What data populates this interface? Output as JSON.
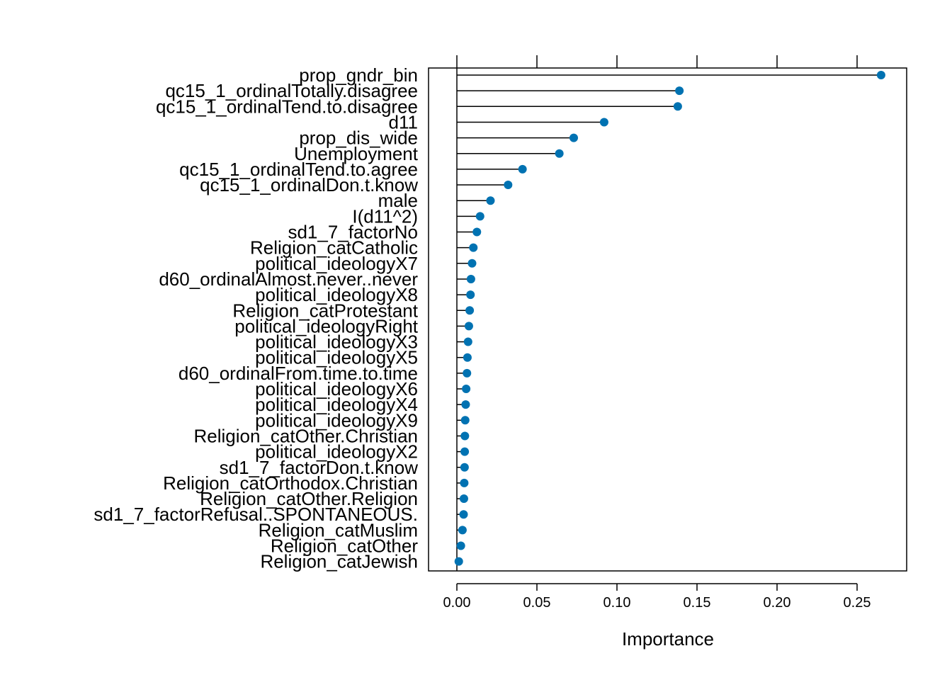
{
  "chart_data": {
    "type": "lollipop",
    "title": "",
    "xlabel": "Importance",
    "ylabel": "",
    "xlim": [
      -0.017,
      0.28
    ],
    "xticks": [
      0.0,
      0.05,
      0.1,
      0.15,
      0.2,
      0.25
    ],
    "xtick_labels": [
      "0.00",
      "0.05",
      "0.10",
      "0.15",
      "0.20",
      "0.25"
    ],
    "grid": false,
    "legend": "none",
    "colors": {
      "point": "#0072B2",
      "line": "#000000",
      "frame": "#000000"
    },
    "categories": [
      "prop_gndr_bin",
      "qc15_1_ordinalTotally.disagree",
      "qc15_1_ordinalTend.to.disagree",
      "d11",
      "prop_dis_wide",
      "Unemployment",
      "qc15_1_ordinalTend.to.agree",
      "qc15_1_ordinalDon.t.know",
      "male",
      "I(d11^2)",
      "sd1_7_factorNo",
      "Religion_catCatholic",
      "political_ideologyX7",
      "d60_ordinalAlmost.never..never",
      "political_ideologyX8",
      "Religion_catProtestant",
      "political_ideologyRight",
      "political_ideologyX3",
      "political_ideologyX5",
      "d60_ordinalFrom.time.to.time",
      "political_ideologyX6",
      "political_ideologyX4",
      "political_ideologyX9",
      "Religion_catOther.Christian",
      "political_ideologyX2",
      "sd1_7_factorDon.t.know",
      "Religion_catOrthodox.Christian",
      "Religion_catOther.Religion",
      "sd1_7_factorRefusal..SPONTANEOUS.",
      "Religion_catMuslim",
      "Religion_catOther",
      "Religion_catJewish"
    ],
    "values": [
      0.265,
      0.139,
      0.138,
      0.092,
      0.073,
      0.064,
      0.041,
      0.032,
      0.021,
      0.0145,
      0.0125,
      0.0103,
      0.0095,
      0.0088,
      0.0085,
      0.008,
      0.0075,
      0.007,
      0.0066,
      0.0063,
      0.0058,
      0.0055,
      0.0052,
      0.005,
      0.0049,
      0.0048,
      0.0046,
      0.0044,
      0.0042,
      0.0035,
      0.0025,
      0.0012
    ]
  }
}
